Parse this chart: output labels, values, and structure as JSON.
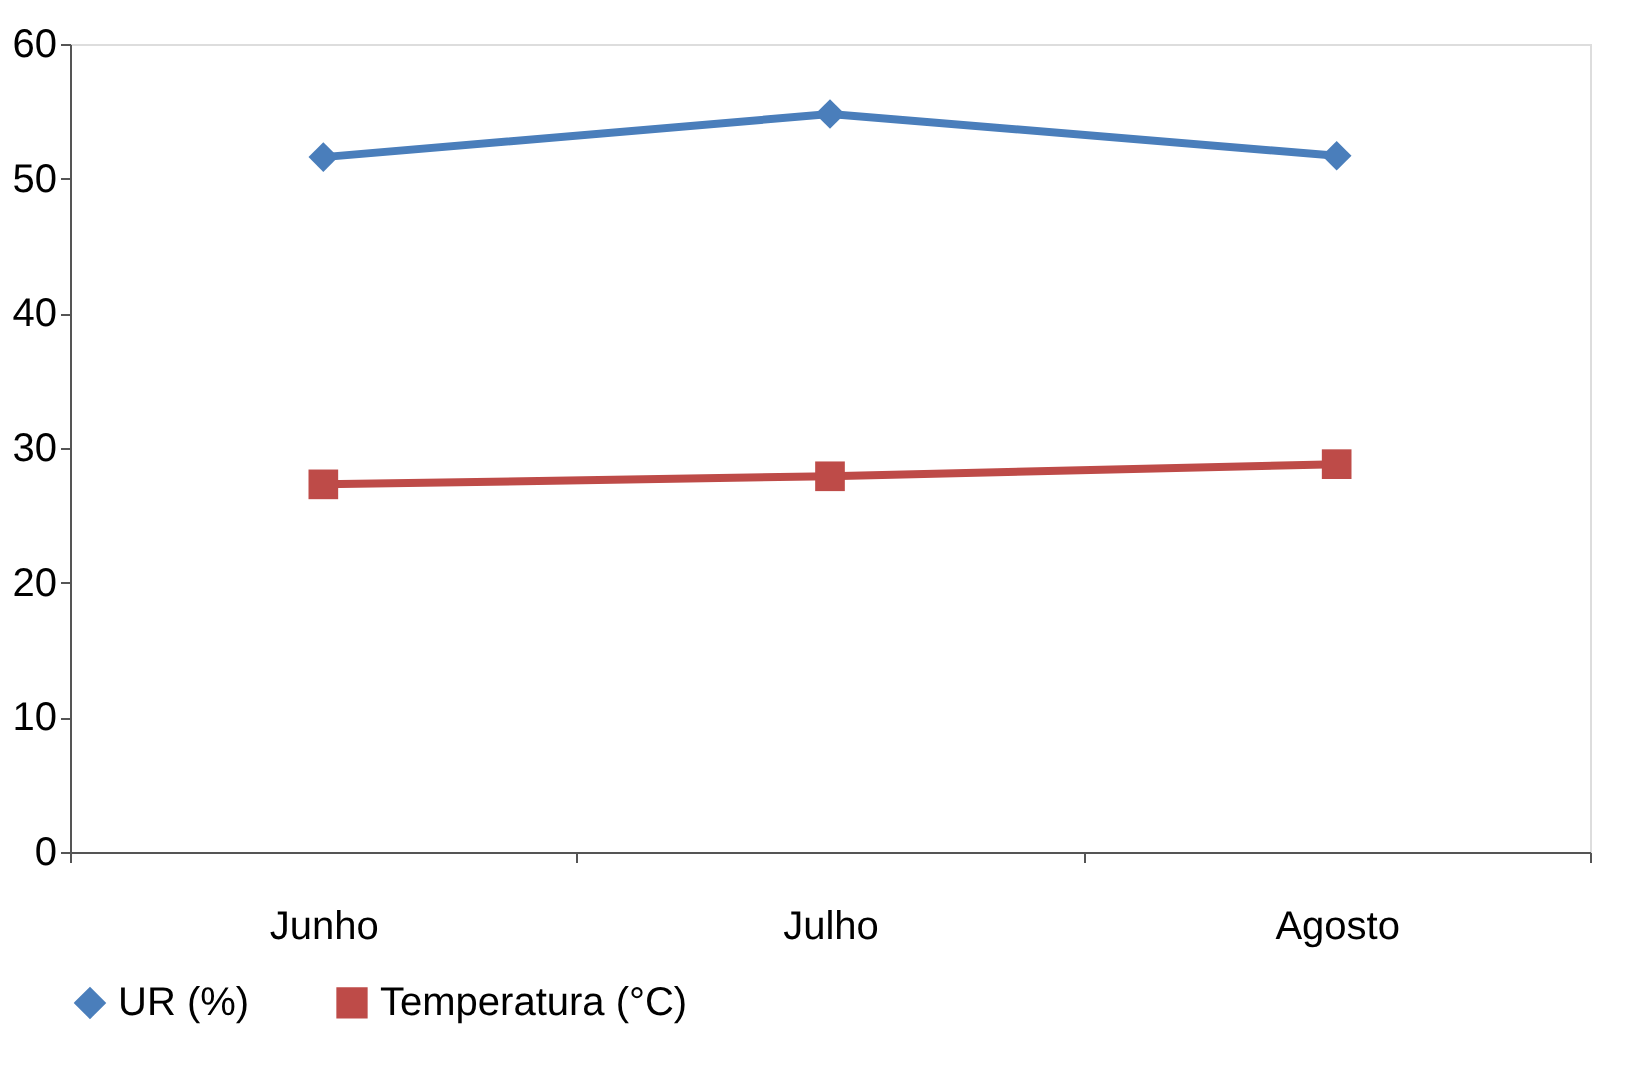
{
  "chart_data": {
    "type": "line",
    "categories": [
      "Junho",
      "Julho",
      "Agosto"
    ],
    "series": [
      {
        "name": "UR (%)",
        "color": "#4a7ebb",
        "marker": "diamond",
        "values": [
          51.6,
          54.8,
          51.7
        ]
      },
      {
        "name": "Temperatura (°C)",
        "color": "#be4b48",
        "marker": "square",
        "values": [
          27.3,
          27.9,
          28.8
        ]
      }
    ],
    "ylim": [
      0,
      60
    ],
    "yticks": [
      0,
      10,
      20,
      30,
      40,
      50,
      60
    ],
    "grid": false,
    "legend": "bottom",
    "line_style": "solid"
  }
}
